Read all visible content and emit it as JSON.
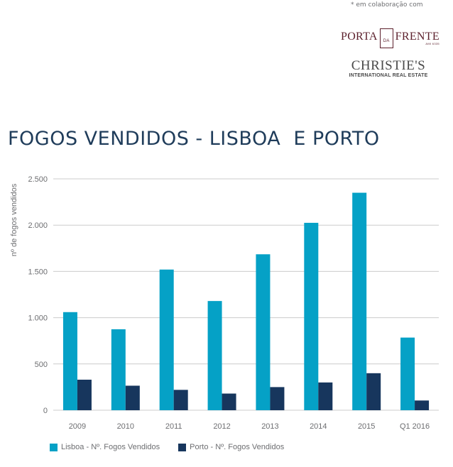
{
  "header": {
    "collab_note": "* em colaboração com",
    "logo1": {
      "left": "PORTA",
      "boxed": "DA",
      "right": "FRENTE",
      "sub": "AMI 6335"
    },
    "logo2": {
      "main": "CHRISTIE'S",
      "sub": "INTERNATIONAL REAL ESTATE"
    }
  },
  "colors": {
    "lisboa": "#05a1c6",
    "porto": "#17365d",
    "grid": "#cccccc",
    "title": "#1f3c5a",
    "text": "#6d6e71"
  },
  "chart_data": {
    "type": "bar",
    "title": "FOGOS VENDIDOS - LISBOA  E PORTO",
    "ylabel": "nº de fogos vendidos",
    "xlabel": "",
    "categories": [
      "2009",
      "2010",
      "2011",
      "2012",
      "2013",
      "2014",
      "2015",
      "Q1 2016"
    ],
    "series": [
      {
        "name": "Lisboa - Nº. Fogos Vendidos",
        "color": "#05a1c6",
        "values": [
          1060,
          875,
          1520,
          1180,
          1685,
          2025,
          2350,
          785
        ]
      },
      {
        "name": "Porto - Nº. Fogos Vendidos",
        "color": "#17365d",
        "values": [
          330,
          265,
          220,
          180,
          250,
          300,
          400,
          105
        ]
      }
    ],
    "ylim": [
      0,
      2500
    ],
    "yticks": [
      0,
      500,
      1000,
      1500,
      2000,
      2500
    ],
    "ytick_labels": [
      "0",
      "500",
      "1.000",
      "1.500",
      "2.000",
      "2.500"
    ],
    "grid": true,
    "legend": "bottom-left"
  }
}
